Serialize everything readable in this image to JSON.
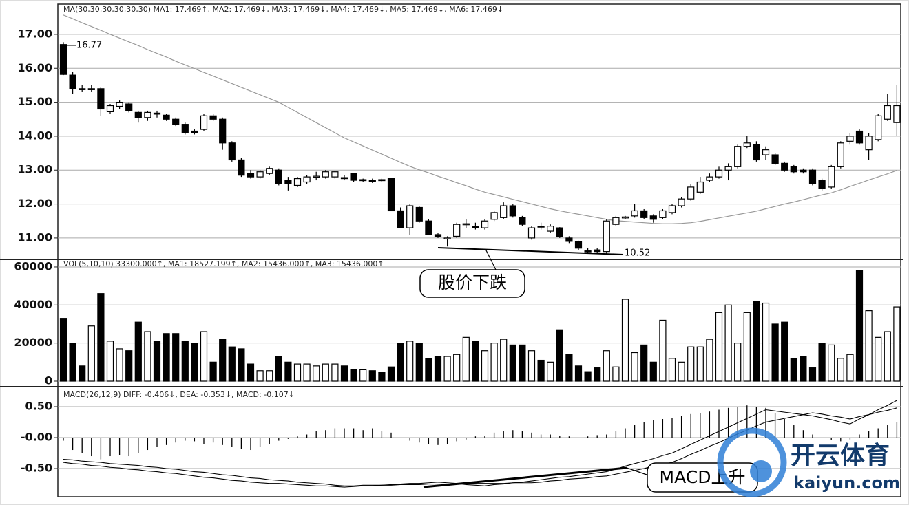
{
  "chart_data": [
    {
      "type": "candlestick",
      "title": "MA(30,30,30,30,30,30)  MA1: 17.469↑,  MA2: 17.469↓,  MA3: 17.469↓,  MA4: 17.469↓,  MA5: 17.469↓,  MA6: 17.469↓",
      "open": [
        16.7,
        15.8,
        15.4,
        15.38,
        15.4,
        14.72,
        14.88,
        14.95,
        14.7,
        14.55,
        14.68,
        14.62,
        14.5,
        14.35,
        14.15,
        14.2,
        14.6,
        14.5,
        13.8,
        13.3,
        12.9,
        12.8,
        12.9,
        13.0,
        12.7,
        12.55,
        12.65,
        12.8,
        12.8,
        12.8,
        12.78,
        12.9,
        12.7,
        12.7,
        12.72,
        12.75,
        11.8,
        11.3,
        11.9,
        11.5,
        11.1,
        11.0,
        11.05,
        11.4,
        11.35,
        11.3,
        11.55,
        11.6,
        11.95,
        11.6,
        11.0,
        11.35,
        11.2,
        11.3,
        11.0,
        10.9,
        10.62,
        10.65,
        10.6,
        11.4,
        11.6,
        11.65,
        11.8,
        11.65,
        11.6,
        11.75,
        11.95,
        12.15,
        12.35,
        12.7,
        12.8,
        13.0,
        13.1,
        13.7,
        13.75,
        13.45,
        13.45,
        13.2,
        13.1,
        13.0,
        13.0,
        12.7,
        12.5,
        13.1,
        13.85,
        14.15,
        13.6,
        13.9,
        14.5,
        14.4
      ],
      "high": [
        16.77,
        15.9,
        15.5,
        15.5,
        15.45,
        14.95,
        15.05,
        15.0,
        14.75,
        14.75,
        14.75,
        14.65,
        14.55,
        14.4,
        14.2,
        14.65,
        14.65,
        14.55,
        13.85,
        13.35,
        13.0,
        13.0,
        13.1,
        13.05,
        12.8,
        12.8,
        12.85,
        12.95,
        13.0,
        12.98,
        12.85,
        12.92,
        12.75,
        12.75,
        12.75,
        12.78,
        11.9,
        12.0,
        11.95,
        11.55,
        11.15,
        11.05,
        11.45,
        11.55,
        11.45,
        11.55,
        11.8,
        12.05,
        12.0,
        11.65,
        11.35,
        11.45,
        11.4,
        11.32,
        11.05,
        10.92,
        10.7,
        10.7,
        11.55,
        11.65,
        11.65,
        12.0,
        11.85,
        11.7,
        11.85,
        12.0,
        12.2,
        12.6,
        12.8,
        12.9,
        13.1,
        13.2,
        13.75,
        14.0,
        13.85,
        13.7,
        13.5,
        13.25,
        13.15,
        13.05,
        13.05,
        12.75,
        13.15,
        13.85,
        14.1,
        14.2,
        14.1,
        14.65,
        15.25,
        15.5
      ],
      "low": [
        15.8,
        15.25,
        15.3,
        15.3,
        14.6,
        14.65,
        14.8,
        14.7,
        14.4,
        14.45,
        14.55,
        14.45,
        14.3,
        14.05,
        14.05,
        14.15,
        14.45,
        13.6,
        13.25,
        12.8,
        12.75,
        12.75,
        12.85,
        12.55,
        12.4,
        12.5,
        12.6,
        12.7,
        12.75,
        12.75,
        12.7,
        12.65,
        12.65,
        12.62,
        12.65,
        11.8,
        11.3,
        11.1,
        11.45,
        11.1,
        11.0,
        10.75,
        11.0,
        11.3,
        11.25,
        11.25,
        11.5,
        11.55,
        11.6,
        11.35,
        10.95,
        11.25,
        11.15,
        11.0,
        10.85,
        10.65,
        10.55,
        10.55,
        10.52,
        11.35,
        11.55,
        11.6,
        11.55,
        11.45,
        11.55,
        11.7,
        11.9,
        12.1,
        12.3,
        12.65,
        12.75,
        12.7,
        13.05,
        13.65,
        13.25,
        13.3,
        13.15,
        12.95,
        12.9,
        12.9,
        12.55,
        12.4,
        12.45,
        13.05,
        13.75,
        13.75,
        13.3,
        13.85,
        14.45,
        14.0
      ],
      "close": [
        15.82,
        15.4,
        15.38,
        15.4,
        14.8,
        14.9,
        15.0,
        14.75,
        14.55,
        14.7,
        14.65,
        14.5,
        14.35,
        14.1,
        14.1,
        14.6,
        14.5,
        13.8,
        13.3,
        12.85,
        12.8,
        12.95,
        13.05,
        12.6,
        12.6,
        12.75,
        12.8,
        12.82,
        12.95,
        12.95,
        12.75,
        12.7,
        12.72,
        12.68,
        12.7,
        11.8,
        11.3,
        11.95,
        11.5,
        11.1,
        11.05,
        11.0,
        11.4,
        11.42,
        11.3,
        11.5,
        11.75,
        11.95,
        11.65,
        11.4,
        11.3,
        11.33,
        11.35,
        11.05,
        10.9,
        10.7,
        10.6,
        10.6,
        11.5,
        11.6,
        11.62,
        11.8,
        11.6,
        11.55,
        11.8,
        11.95,
        12.15,
        12.5,
        12.65,
        12.8,
        13.0,
        13.1,
        13.7,
        13.8,
        13.3,
        13.6,
        13.2,
        13.0,
        12.95,
        12.95,
        12.6,
        12.45,
        13.1,
        13.8,
        14.0,
        13.8,
        14.0,
        14.6,
        14.9,
        14.9
      ],
      "ma": [
        17.57,
        17.46,
        17.34,
        17.23,
        17.12,
        17.0,
        16.89,
        16.78,
        16.67,
        16.55,
        16.44,
        16.33,
        16.21,
        16.1,
        15.99,
        15.88,
        15.77,
        15.66,
        15.55,
        15.44,
        15.33,
        15.22,
        15.11,
        15.0,
        14.85,
        14.7,
        14.55,
        14.4,
        14.25,
        14.1,
        13.95,
        13.83,
        13.71,
        13.59,
        13.47,
        13.35,
        13.23,
        13.11,
        13.01,
        12.92,
        12.82,
        12.73,
        12.63,
        12.54,
        12.44,
        12.35,
        12.28,
        12.21,
        12.14,
        12.07,
        12.0,
        11.93,
        11.86,
        11.8,
        11.75,
        11.7,
        11.65,
        11.6,
        11.55,
        11.51,
        11.49,
        11.47,
        11.45,
        11.43,
        11.42,
        11.42,
        11.43,
        11.45,
        11.49,
        11.54,
        11.59,
        11.64,
        11.69,
        11.74,
        11.79,
        11.86,
        11.93,
        12.0,
        12.06,
        12.13,
        12.2,
        12.27,
        12.33,
        12.42,
        12.52,
        12.61,
        12.71,
        12.8,
        12.89,
        12.99
      ],
      "up_color": "#ffffff",
      "down_color": "#000000",
      "ma_color": "#999999",
      "ylim": [
        10.39,
        17.85
      ],
      "yticks": [
        {
          "value": 11,
          "label": "11.00"
        },
        {
          "value": 12,
          "label": "12.00"
        },
        {
          "value": 13,
          "label": "13.00"
        },
        {
          "value": 14,
          "label": "14.00"
        },
        {
          "value": 15,
          "label": "15.00"
        },
        {
          "value": 16,
          "label": "16.00"
        },
        {
          "value": 17,
          "label": "17.00"
        }
      ],
      "grid": true,
      "annotations": [
        "16.77",
        "10.52",
        "股价下跌"
      ]
    },
    {
      "type": "bar",
      "title": "VOL(5,10,10)  33300.000↑,  MA1: 18527.199↑,  MA2: 15436.000↑,  MA3: 15436.000↑",
      "values": [
        33000,
        20000,
        8000,
        29000,
        46000,
        21000,
        17000,
        16000,
        31000,
        26000,
        21000,
        25000,
        25000,
        21000,
        20000,
        26000,
        10000,
        22000,
        18000,
        17000,
        9000,
        5500,
        5500,
        13000,
        10000,
        9000,
        9000,
        8000,
        9000,
        9000,
        8000,
        6000,
        6000,
        5500,
        4500,
        7500,
        20000,
        21000,
        20000,
        12000,
        13000,
        13000,
        14000,
        23000,
        21000,
        16000,
        20000,
        22000,
        19000,
        19000,
        16000,
        11000,
        10000,
        27000,
        14000,
        8000,
        5000,
        7000,
        16000,
        7500,
        43000,
        15000,
        19000,
        10000,
        32000,
        12000,
        10000,
        18000,
        18000,
        22000,
        36000,
        40000,
        20000,
        36000,
        42000,
        41000,
        30000,
        31000,
        12000,
        13000,
        7000,
        20000,
        19000,
        12000,
        14000,
        58000,
        37000,
        23000,
        26000,
        39000
      ],
      "ylim": [
        0,
        63600
      ],
      "yticks": [
        0,
        20000,
        40000,
        60000
      ],
      "grid": true
    },
    {
      "type": "macd",
      "title": "MACD(26,12,9)  DIFF: -0.406↓,  DEA: -0.353↓,  MACD: -0.107↓",
      "values": [
        -0.05,
        -0.2,
        -0.25,
        -0.3,
        -0.35,
        -0.3,
        -0.28,
        -0.3,
        -0.25,
        -0.2,
        -0.15,
        -0.12,
        -0.08,
        -0.05,
        -0.06,
        -0.1,
        -0.08,
        -0.12,
        -0.15,
        -0.18,
        -0.2,
        -0.15,
        -0.1,
        -0.05,
        -0.02,
        0.02,
        0.05,
        0.1,
        0.12,
        0.15,
        0.15,
        0.15,
        0.12,
        0.15,
        0.1,
        0.08,
        0.0,
        -0.05,
        -0.08,
        -0.1,
        -0.12,
        -0.1,
        -0.06,
        -0.03,
        0.02,
        0.03,
        0.08,
        0.1,
        0.12,
        0.1,
        0.08,
        0.05,
        0.05,
        0.03,
        0.02,
        0.0,
        0.02,
        0.04,
        0.05,
        0.1,
        0.15,
        0.2,
        0.25,
        0.28,
        0.3,
        0.32,
        0.35,
        0.38,
        0.4,
        0.42,
        0.45,
        0.48,
        0.5,
        0.52,
        0.5,
        0.48,
        0.4,
        0.3,
        0.2,
        0.12,
        0.05,
        0.0,
        -0.04,
        -0.06,
        -0.03,
        0.05,
        0.1,
        0.15,
        0.2,
        0.25
      ],
      "series": [
        {
          "values": [
            -0.4,
            -0.42,
            -0.43,
            -0.45,
            -0.46,
            -0.48,
            -0.49,
            -0.51,
            -0.52,
            -0.54,
            -0.55,
            -0.57,
            -0.58,
            -0.6,
            -0.62,
            -0.64,
            -0.65,
            -0.67,
            -0.69,
            -0.7,
            -0.72,
            -0.73,
            -0.74,
            -0.74,
            -0.75,
            -0.76,
            -0.77,
            -0.78,
            -0.78,
            -0.79,
            -0.8,
            -0.79,
            -0.78,
            -0.78,
            -0.77,
            -0.76,
            -0.75,
            -0.74,
            -0.74,
            -0.73,
            -0.72,
            -0.73,
            -0.74,
            -0.76,
            -0.77,
            -0.78,
            -0.76,
            -0.75,
            -0.73,
            -0.72,
            -0.7,
            -0.68,
            -0.66,
            -0.64,
            -0.63,
            -0.61,
            -0.59,
            -0.57,
            -0.55,
            -0.51,
            -0.46,
            -0.42,
            -0.38,
            -0.34,
            -0.29,
            -0.25,
            -0.18,
            -0.11,
            -0.04,
            0.03,
            0.1,
            0.17,
            0.24,
            0.31,
            0.38,
            0.45,
            0.43,
            0.41,
            0.39,
            0.37,
            0.35,
            0.32,
            0.29,
            0.25,
            0.22,
            0.3,
            0.37,
            0.45,
            0.52,
            0.6
          ]
        },
        {
          "values": [
            -0.35,
            -0.36,
            -0.38,
            -0.39,
            -0.4,
            -0.42,
            -0.43,
            -0.44,
            -0.45,
            -0.47,
            -0.48,
            -0.5,
            -0.51,
            -0.53,
            -0.55,
            -0.56,
            -0.58,
            -0.6,
            -0.61,
            -0.63,
            -0.65,
            -0.66,
            -0.68,
            -0.69,
            -0.7,
            -0.72,
            -0.73,
            -0.74,
            -0.75,
            -0.77,
            -0.78,
            -0.78,
            -0.77,
            -0.77,
            -0.77,
            -0.77,
            -0.76,
            -0.76,
            -0.76,
            -0.75,
            -0.75,
            -0.75,
            -0.75,
            -0.74,
            -0.74,
            -0.74,
            -0.74,
            -0.74,
            -0.73,
            -0.73,
            -0.73,
            -0.72,
            -0.7,
            -0.69,
            -0.67,
            -0.66,
            -0.65,
            -0.63,
            -0.62,
            -0.59,
            -0.56,
            -0.53,
            -0.5,
            -0.46,
            -0.43,
            -0.4,
            -0.34,
            -0.27,
            -0.21,
            -0.14,
            -0.08,
            -0.01,
            0.06,
            0.12,
            0.19,
            0.25,
            0.28,
            0.31,
            0.34,
            0.37,
            0.4,
            0.38,
            0.35,
            0.33,
            0.3,
            0.34,
            0.37,
            0.41,
            0.44,
            0.48
          ]
        }
      ],
      "ylim": [
        -0.955,
        0.8
      ],
      "yticks": [
        {
          "value": -0.5,
          "label": "-0.50"
        },
        {
          "value": 0,
          "label": "-0.00"
        },
        {
          "value": 0.5,
          "label": "0.50"
        }
      ],
      "grid": true,
      "annotations": [
        "MACD上升"
      ]
    }
  ],
  "watermark": {
    "name": "开云体育",
    "url": "kaiyun.com"
  }
}
